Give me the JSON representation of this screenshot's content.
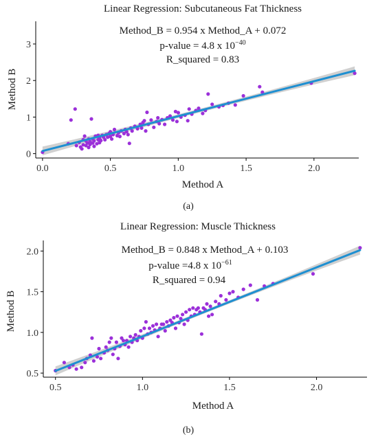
{
  "chart_data": [
    {
      "type": "scatter",
      "title": "Linear Regression: Subcutaneous Fat Thickness",
      "xlabel": "Method A",
      "ylabel": "Method B",
      "xlim": [
        -0.05,
        2.33
      ],
      "ylim": [
        -0.12,
        3.62
      ],
      "x_ticks": [
        0.0,
        0.5,
        1.0,
        1.5,
        2.0
      ],
      "x_tick_labels": [
        "0.0",
        "0.5",
        "1.0",
        "1.5",
        "2.0"
      ],
      "y_ticks": [
        0,
        1,
        2,
        3
      ],
      "y_tick_labels": [
        "0",
        "1",
        "2",
        "3"
      ],
      "grid": false,
      "annotation": {
        "equation": "Method_B = 0.954 x Method_A + 0.072",
        "pvalue_prefix": "p-value = 4.8 x 10",
        "pvalue_exponent": "−40",
        "r_squared": "R_squared = 0.83"
      },
      "fit": {
        "slope": 0.954,
        "intercept": 0.072,
        "x_range": [
          0.0,
          2.3
        ],
        "band": 0.05,
        "band_growth": 0.07
      },
      "series": [
        {
          "points": [
            [
              0.0,
              0.04
            ],
            [
              0.19,
              0.27
            ],
            [
              0.21,
              0.92
            ],
            [
              0.24,
              1.22
            ],
            [
              0.25,
              0.22
            ],
            [
              0.27,
              0.31
            ],
            [
              0.28,
              0.18
            ],
            [
              0.29,
              0.13
            ],
            [
              0.3,
              0.38
            ],
            [
              0.3,
              0.24
            ],
            [
              0.31,
              0.48
            ],
            [
              0.32,
              0.35
            ],
            [
              0.32,
              0.22
            ],
            [
              0.33,
              0.29
            ],
            [
              0.34,
              0.4
            ],
            [
              0.34,
              0.17
            ],
            [
              0.35,
              0.25
            ],
            [
              0.35,
              0.33
            ],
            [
              0.36,
              0.95
            ],
            [
              0.37,
              0.29
            ],
            [
              0.37,
              0.4
            ],
            [
              0.38,
              0.2
            ],
            [
              0.38,
              0.35
            ],
            [
              0.39,
              0.48
            ],
            [
              0.4,
              0.27
            ],
            [
              0.41,
              0.38
            ],
            [
              0.41,
              0.5
            ],
            [
              0.42,
              0.3
            ],
            [
              0.42,
              0.43
            ],
            [
              0.43,
              0.36
            ],
            [
              0.44,
              0.5
            ],
            [
              0.45,
              0.45
            ],
            [
              0.46,
              0.38
            ],
            [
              0.47,
              0.52
            ],
            [
              0.48,
              0.45
            ],
            [
              0.49,
              0.55
            ],
            [
              0.5,
              0.47
            ],
            [
              0.5,
              0.6
            ],
            [
              0.51,
              0.4
            ],
            [
              0.52,
              0.52
            ],
            [
              0.53,
              0.66
            ],
            [
              0.55,
              0.49
            ],
            [
              0.56,
              0.57
            ],
            [
              0.57,
              0.47
            ],
            [
              0.58,
              0.62
            ],
            [
              0.6,
              0.55
            ],
            [
              0.61,
              0.66
            ],
            [
              0.62,
              0.6
            ],
            [
              0.63,
              0.52
            ],
            [
              0.64,
              0.28
            ],
            [
              0.65,
              0.7
            ],
            [
              0.66,
              0.62
            ],
            [
              0.68,
              0.75
            ],
            [
              0.7,
              0.68
            ],
            [
              0.72,
              0.8
            ],
            [
              0.73,
              0.7
            ],
            [
              0.74,
              0.85
            ],
            [
              0.75,
              0.9
            ],
            [
              0.76,
              0.62
            ],
            [
              0.77,
              1.13
            ],
            [
              0.78,
              0.8
            ],
            [
              0.8,
              0.92
            ],
            [
              0.82,
              0.72
            ],
            [
              0.84,
              0.88
            ],
            [
              0.85,
              0.98
            ],
            [
              0.86,
              0.82
            ],
            [
              0.88,
              0.93
            ],
            [
              0.9,
              0.8
            ],
            [
              0.92,
              0.98
            ],
            [
              0.94,
              1.03
            ],
            [
              0.96,
              0.92
            ],
            [
              0.98,
              1.15
            ],
            [
              0.99,
              0.88
            ],
            [
              1.0,
              1.12
            ],
            [
              1.02,
              1.0
            ],
            [
              1.05,
              1.05
            ],
            [
              1.07,
              0.9
            ],
            [
              1.08,
              1.22
            ],
            [
              1.1,
              1.08
            ],
            [
              1.13,
              1.18
            ],
            [
              1.15,
              1.24
            ],
            [
              1.18,
              1.1
            ],
            [
              1.2,
              1.18
            ],
            [
              1.22,
              1.63
            ],
            [
              1.25,
              1.35
            ],
            [
              1.3,
              1.28
            ],
            [
              1.33,
              1.32
            ],
            [
              1.37,
              1.38
            ],
            [
              1.42,
              1.33
            ],
            [
              1.48,
              1.58
            ],
            [
              1.6,
              1.83
            ],
            [
              1.62,
              1.68
            ],
            [
              1.98,
              1.93
            ],
            [
              2.3,
              2.2
            ]
          ]
        }
      ]
    },
    {
      "type": "scatter",
      "title": "Linear Regression: Muscle Thickness",
      "xlabel": "Method A",
      "ylabel": "Method B",
      "xlim": [
        0.43,
        2.29
      ],
      "ylim": [
        0.45,
        2.13
      ],
      "x_ticks": [
        0.5,
        1.0,
        1.5,
        2.0
      ],
      "x_tick_labels": [
        "0.5",
        "1.0",
        "1.5",
        "2.0"
      ],
      "y_ticks": [
        0.5,
        1.0,
        1.5,
        2.0
      ],
      "y_tick_labels": [
        "0.5",
        "1.0",
        "1.5",
        "2.0"
      ],
      "grid": false,
      "annotation": {
        "equation": "Method_B = 0.848 x Method_A + 0.103",
        "pvalue_prefix": "p-value =4.8 x 10",
        "pvalue_exponent": "−61",
        "r_squared": "R_squared = 0.94"
      },
      "fit": {
        "slope": 0.848,
        "intercept": 0.103,
        "x_range": [
          0.5,
          2.25
        ],
        "band": 0.02,
        "band_growth": 0.035
      },
      "series": [
        {
          "points": [
            [
              0.5,
              0.53
            ],
            [
              0.55,
              0.63
            ],
            [
              0.58,
              0.57
            ],
            [
              0.6,
              0.6
            ],
            [
              0.62,
              0.55
            ],
            [
              0.65,
              0.57
            ],
            [
              0.67,
              0.63
            ],
            [
              0.68,
              0.68
            ],
            [
              0.7,
              0.72
            ],
            [
              0.71,
              0.93
            ],
            [
              0.72,
              0.65
            ],
            [
              0.74,
              0.7
            ],
            [
              0.75,
              0.8
            ],
            [
              0.76,
              0.68
            ],
            [
              0.78,
              0.75
            ],
            [
              0.79,
              0.82
            ],
            [
              0.8,
              0.78
            ],
            [
              0.81,
              0.88
            ],
            [
              0.82,
              0.93
            ],
            [
              0.83,
              0.73
            ],
            [
              0.84,
              0.8
            ],
            [
              0.85,
              0.88
            ],
            [
              0.86,
              0.68
            ],
            [
              0.87,
              0.83
            ],
            [
              0.88,
              0.93
            ],
            [
              0.89,
              0.9
            ],
            [
              0.9,
              0.85
            ],
            [
              0.91,
              0.9
            ],
            [
              0.92,
              0.82
            ],
            [
              0.93,
              0.95
            ],
            [
              0.94,
              0.88
            ],
            [
              0.95,
              0.93
            ],
            [
              0.96,
              0.97
            ],
            [
              0.97,
              0.9
            ],
            [
              0.98,
              0.95
            ],
            [
              0.99,
              1.02
            ],
            [
              1.0,
              0.93
            ],
            [
              1.01,
              1.05
            ],
            [
              1.02,
              1.13
            ],
            [
              1.03,
              0.98
            ],
            [
              1.04,
              1.05
            ],
            [
              1.05,
              1.0
            ],
            [
              1.06,
              1.08
            ],
            [
              1.07,
              1.03
            ],
            [
              1.08,
              1.1
            ],
            [
              1.09,
              0.95
            ],
            [
              1.1,
              1.05
            ],
            [
              1.11,
              1.1
            ],
            [
              1.12,
              1.1
            ],
            [
              1.13,
              1.02
            ],
            [
              1.14,
              1.13
            ],
            [
              1.15,
              1.08
            ],
            [
              1.16,
              1.15
            ],
            [
              1.17,
              1.12
            ],
            [
              1.18,
              1.18
            ],
            [
              1.19,
              1.05
            ],
            [
              1.2,
              1.2
            ],
            [
              1.21,
              1.12
            ],
            [
              1.22,
              1.17
            ],
            [
              1.23,
              1.22
            ],
            [
              1.24,
              1.1
            ],
            [
              1.25,
              1.25
            ],
            [
              1.26,
              1.15
            ],
            [
              1.27,
              1.28
            ],
            [
              1.28,
              1.2
            ],
            [
              1.29,
              1.3
            ],
            [
              1.3,
              1.22
            ],
            [
              1.31,
              1.28
            ],
            [
              1.32,
              1.3
            ],
            [
              1.33,
              1.25
            ],
            [
              1.34,
              0.98
            ],
            [
              1.35,
              1.3
            ],
            [
              1.36,
              1.28
            ],
            [
              1.37,
              1.35
            ],
            [
              1.38,
              1.2
            ],
            [
              1.39,
              1.32
            ],
            [
              1.4,
              1.22
            ],
            [
              1.42,
              1.38
            ],
            [
              1.44,
              1.35
            ],
            [
              1.45,
              1.45
            ],
            [
              1.48,
              1.4
            ],
            [
              1.5,
              1.48
            ],
            [
              1.52,
              1.5
            ],
            [
              1.55,
              1.43
            ],
            [
              1.58,
              1.53
            ],
            [
              1.62,
              1.58
            ],
            [
              1.66,
              1.4
            ],
            [
              1.7,
              1.57
            ],
            [
              1.75,
              1.6
            ],
            [
              1.98,
              1.72
            ],
            [
              2.25,
              2.04
            ]
          ]
        }
      ]
    }
  ],
  "captions": [
    "(a)",
    "(b)"
  ],
  "colors": {
    "points": "#9b30d9",
    "line": "#1e8fd1",
    "band": "#c8c8c8",
    "axis": "#000000"
  }
}
